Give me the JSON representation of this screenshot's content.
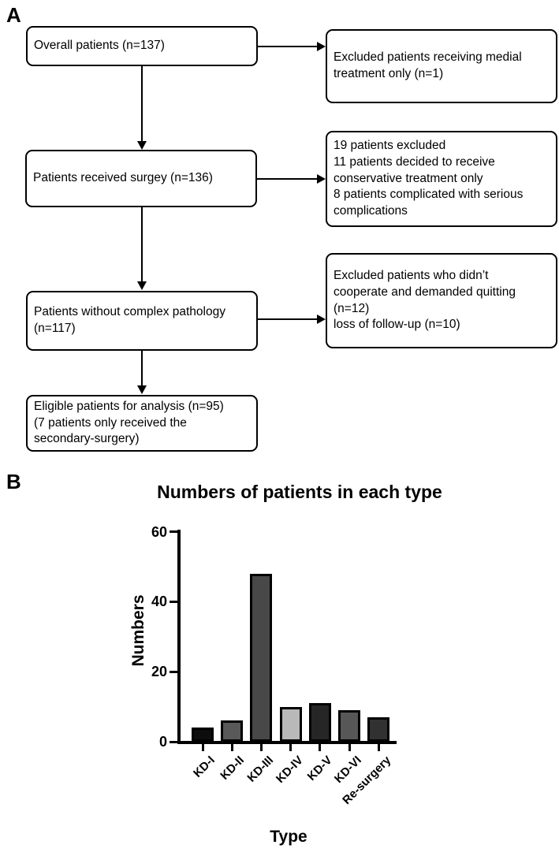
{
  "figure": {
    "panel_a_label": "A",
    "panel_b_label": "B"
  },
  "flowchart": {
    "boxes": {
      "overall": "Overall patients (n=137)",
      "surgery": "Patients received surgey (n=136)",
      "no_complex": "Patients without complex pathology\n(n=117)",
      "eligible": "Eligible patients for analysis (n=95)\n(7 patients only received the\nsecondary-surgery)",
      "excluded1": "Excluded patients receiving medial\ntreatment only (n=1)",
      "excluded2": "19 patients excluded\n11 patients decided to receive\nconservative treatment only\n8 patients complicated with serious\ncomplications",
      "excluded3": "Excluded patients who didn’t\ncooperate and demanded quitting\n(n=12)\nloss of follow-up (n=10)"
    }
  },
  "chart_data": {
    "type": "bar",
    "title": "Numbers of patients in each type",
    "xlabel": "Type",
    "ylabel": "Numbers",
    "categories": [
      "KD-I",
      "KD-II",
      "KD-III",
      "KD-IV",
      "KD-V",
      "KD-VI",
      "Re-surgery"
    ],
    "values": [
      4,
      6,
      48,
      10,
      11,
      9,
      7
    ],
    "bar_colors": [
      "#0d0d0d",
      "#595959",
      "#484848",
      "#b9b9b9",
      "#262626",
      "#575757",
      "#313131"
    ],
    "bar_border_color": "#000000",
    "yticks": [
      0,
      20,
      40,
      60
    ],
    "ylim": [
      0,
      60
    ],
    "grid": false,
    "legend_position": "none"
  }
}
